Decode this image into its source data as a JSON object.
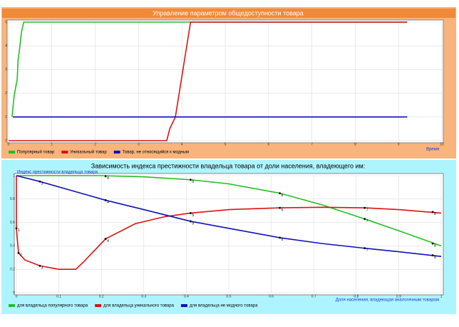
{
  "chart_data": [
    {
      "type": "line",
      "title": "Управление параметром общедоступности товара",
      "xlabel": "Время",
      "xlim": [
        0,
        10
      ],
      "ylim": [
        0,
        5
      ],
      "xticks": [
        0,
        1,
        2,
        3,
        4,
        5,
        6,
        7,
        8,
        9,
        10
      ],
      "yticks": [
        0,
        1,
        2,
        3,
        4,
        5
      ],
      "grid": true,
      "series": [
        {
          "name": "Популярный товар",
          "color": "#22c022",
          "x": [
            0.08,
            0.13,
            0.2,
            0.22,
            0.25,
            0.3,
            0.35,
            4.2,
            9.2
          ],
          "values": [
            1,
            1.9,
            2.6,
            3.4,
            3.8,
            4.6,
            5,
            5,
            5
          ]
        },
        {
          "name": "Уникальный товар",
          "color": "#dd1111",
          "x": [
            0,
            3.65,
            3.72,
            3.85,
            4.2,
            9.2
          ],
          "values": [
            0,
            0,
            0.5,
            1,
            5,
            5
          ]
        },
        {
          "name": "Товар, не относящийся к модным",
          "color": "#1111bb",
          "x": [
            0.1,
            9.2
          ],
          "values": [
            1,
            1
          ]
        }
      ]
    },
    {
      "type": "line",
      "title": "Зависимость индекса престижности владельца товара от доли населения, владеющего им:",
      "ylabel": "Индекс престижности владельца товара",
      "xlabel": "Доля населения, владеющая аналогичным товаром",
      "xlim": [
        0,
        1
      ],
      "ylim": [
        0,
        1
      ],
      "xticks": [
        0,
        0.1,
        0.2,
        0.3,
        0.4,
        0.5,
        0.6,
        0.7,
        0.8,
        0.9,
        1
      ],
      "yticks": [
        0,
        0.2,
        0.4,
        0.6,
        0.8,
        1
      ],
      "grid": true,
      "series": [
        {
          "name": "для владельца популярного товара",
          "color": "#22c022",
          "x": [
            0,
            0.2,
            0.3,
            0.41,
            0.5,
            0.62,
            0.72,
            0.82,
            0.9,
            1
          ],
          "values": [
            1,
            1,
            0.99,
            0.965,
            0.93,
            0.85,
            0.75,
            0.63,
            0.53,
            0.4
          ],
          "markers": [
            {
              "x": 0.21,
              "y": 0.995,
              "label": 4
            },
            {
              "x": 0.41,
              "y": 0.965,
              "label": 5
            },
            {
              "x": 0.62,
              "y": 0.85,
              "label": 6
            },
            {
              "x": 0.82,
              "y": 0.63,
              "label": 7
            },
            {
              "x": 0.98,
              "y": 0.42,
              "label": 8
            }
          ]
        },
        {
          "name": "для владельца уникального товара",
          "color": "#dd1111",
          "x": [
            0,
            0,
            0.005,
            0.02,
            0.055,
            0.1,
            0.14,
            0.16,
            0.21,
            0.28,
            0.35,
            0.41,
            0.5,
            0.62,
            0.72,
            0.82,
            0.9,
            1
          ],
          "values": [
            1,
            0.55,
            0.34,
            0.28,
            0.23,
            0.2,
            0.2,
            0.27,
            0.46,
            0.59,
            0.65,
            0.68,
            0.71,
            0.725,
            0.73,
            0.725,
            0.71,
            0.68
          ],
          "markers": [
            {
              "x": 0,
              "y": 0.55,
              "label": 1
            },
            {
              "x": 0.005,
              "y": 0.34,
              "label": 2
            },
            {
              "x": 0.055,
              "y": 0.23,
              "label": 3
            },
            {
              "x": 0.21,
              "y": 0.46,
              "label": 4
            },
            {
              "x": 0.41,
              "y": 0.68,
              "label": 5
            },
            {
              "x": 0.62,
              "y": 0.725,
              "label": 6
            },
            {
              "x": 0.82,
              "y": 0.725,
              "label": 7
            },
            {
              "x": 0.98,
              "y": 0.69,
              "label": 8
            }
          ]
        },
        {
          "name": "для владельца не модного товара",
          "color": "#1111bb",
          "x": [
            0,
            0.055,
            0.21,
            0.3,
            0.41,
            0.5,
            0.62,
            0.72,
            0.82,
            0.9,
            1
          ],
          "values": [
            1,
            0.95,
            0.79,
            0.71,
            0.61,
            0.55,
            0.47,
            0.42,
            0.38,
            0.35,
            0.31
          ],
          "markers": [
            {
              "x": 0.055,
              "y": 0.95,
              "label": 3
            },
            {
              "x": 0.21,
              "y": 0.79,
              "label": 4
            },
            {
              "x": 0.41,
              "y": 0.61,
              "label": 5
            },
            {
              "x": 0.62,
              "y": 0.47,
              "label": 6
            },
            {
              "x": 0.82,
              "y": 0.38,
              "label": 7
            },
            {
              "x": 0.98,
              "y": 0.32,
              "label": 8
            }
          ]
        }
      ]
    }
  ]
}
